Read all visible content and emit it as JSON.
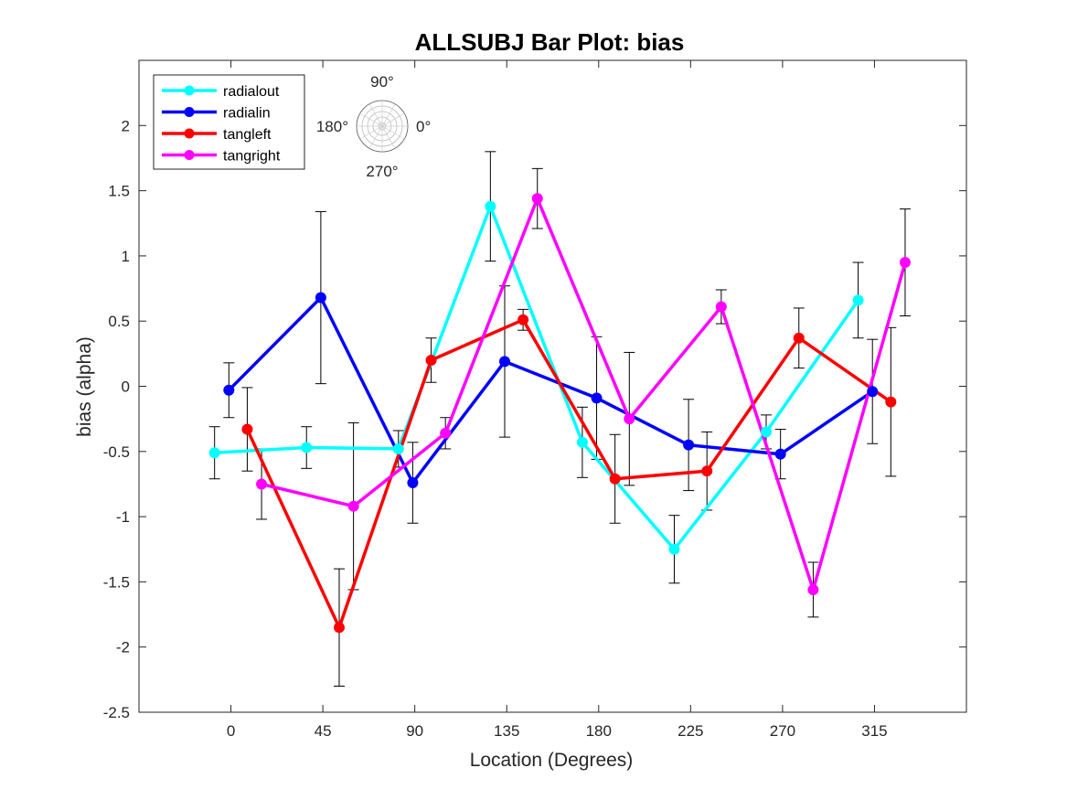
{
  "chart_data": {
    "type": "line",
    "title": "ALLSUBJ Bar Plot: bias",
    "xlabel": "Location (Degrees)",
    "ylabel": "bias (alpha)",
    "xlim": [
      -45,
      360
    ],
    "ylim": [
      -2.5,
      2.5
    ],
    "xticks": [
      0,
      45,
      90,
      135,
      180,
      225,
      270,
      315
    ],
    "yticks": [
      -2.5,
      -2,
      -1.5,
      -1,
      -0.5,
      0,
      0.5,
      1,
      1.5,
      2
    ],
    "xtick_labels": [
      "0",
      "45",
      "90",
      "135",
      "180",
      "225",
      "270",
      "315"
    ],
    "ytick_labels": [
      "-2.5",
      "-2",
      "-1.5",
      "-1",
      "-0.5",
      "0",
      "0.5",
      "1",
      "1.5",
      "2"
    ],
    "grid": false,
    "legend_position": "top-left",
    "series": [
      {
        "name": "radialout",
        "color": "#00ffff",
        "x": [
          -8,
          37,
          82,
          127,
          172,
          217,
          262,
          307
        ],
        "y": [
          -0.51,
          -0.47,
          -0.48,
          1.38,
          -0.43,
          -1.25,
          -0.35,
          0.66
        ],
        "err": [
          0.2,
          0.16,
          0.14,
          0.42,
          0.27,
          0.26,
          0.13,
          0.29
        ]
      },
      {
        "name": "radialin",
        "color": "#0000ff",
        "x": [
          -1,
          44,
          89,
          134,
          179,
          224,
          269,
          314
        ],
        "y": [
          -0.03,
          0.68,
          -0.74,
          0.19,
          -0.09,
          -0.45,
          -0.52,
          -0.04
        ],
        "err": [
          0.21,
          0.66,
          0.31,
          0.58,
          0.47,
          0.35,
          0.19,
          0.4
        ]
      },
      {
        "name": "tangleft",
        "color": "#ff0000",
        "x": [
          8,
          53,
          98,
          143,
          188,
          233,
          278,
          323
        ],
        "y": [
          -0.33,
          -1.85,
          0.2,
          0.51,
          -0.71,
          -0.65,
          0.37,
          -0.12
        ],
        "err": [
          0.32,
          0.45,
          0.17,
          0.08,
          0.34,
          0.3,
          0.23,
          0.57
        ]
      },
      {
        "name": "tangright",
        "color": "#ff00ff",
        "x": [
          15,
          60,
          105,
          150,
          195,
          240,
          285,
          330
        ],
        "y": [
          -0.75,
          -0.92,
          -0.36,
          1.44,
          -0.25,
          0.61,
          -1.56,
          0.95
        ],
        "err": [
          0.27,
          0.64,
          0.12,
          0.23,
          0.51,
          0.13,
          0.21,
          0.41
        ]
      }
    ],
    "inset": {
      "labels": {
        "top": "90°",
        "left": "180°",
        "right": "0°",
        "bottom": "270°"
      }
    }
  }
}
